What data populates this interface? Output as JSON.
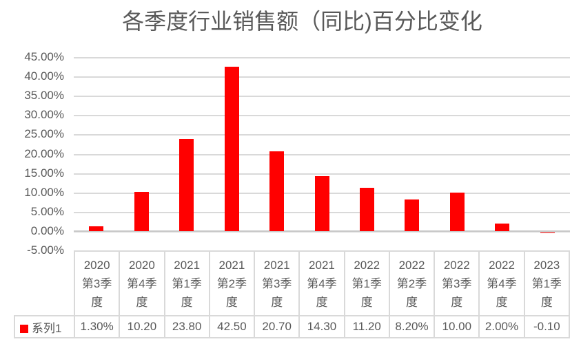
{
  "title": "各季度行业销售额（同比)百分比变化",
  "colors": {
    "bar": "#FF0000",
    "text": "#595959",
    "gridline": "#D9D9D9",
    "axis_line": "#C8C8C8",
    "table_border": "#D9D9D9",
    "background": "#FFFFFF"
  },
  "y_axis": {
    "ticks": [
      "45.00%",
      "40.00%",
      "35.00%",
      "30.00%",
      "25.00%",
      "20.00%",
      "15.00%",
      "10.00%",
      "5.00%",
      "0.00%",
      "-5.00%"
    ]
  },
  "legend": {
    "label": "系列1",
    "marker_color": "#FF0000"
  },
  "table": {
    "headers": [
      "2020\n第3季\n度",
      "2020\n第4季\n度",
      "2021\n第1季\n度",
      "2021\n第2季\n度",
      "2021\n第3季\n度",
      "2021\n第4季\n度",
      "2022\n第1季\n度",
      "2022\n第2季\n度",
      "2022\n第3季\n度",
      "2022\n第4季\n度",
      "2023\n第1季\n度"
    ],
    "values": [
      "1.30%",
      "10.20",
      "23.80",
      "42.50",
      "20.70",
      "14.30",
      "11.20",
      "8.20%",
      "10.00",
      "2.00%",
      "-0.10"
    ]
  },
  "chart_data": {
    "type": "bar",
    "title": "各季度行业销售额（同比)百分比变化",
    "categories": [
      "2020第3季度",
      "2020第4季度",
      "2021第1季度",
      "2021第2季度",
      "2021第3季度",
      "2021第4季度",
      "2022第1季度",
      "2022第2季度",
      "2022第3季度",
      "2022第4季度",
      "2023第1季度"
    ],
    "series": [
      {
        "name": "系列1",
        "values": [
          1.3,
          10.2,
          23.8,
          42.5,
          20.7,
          14.3,
          11.2,
          8.2,
          10.0,
          2.0,
          -0.1
        ]
      }
    ],
    "unit": "percent",
    "ylim": [
      -5,
      45
    ],
    "y_tick_step": 5,
    "grid": true,
    "bar_color": "#FF0000",
    "legend_position": "data-table-left"
  }
}
